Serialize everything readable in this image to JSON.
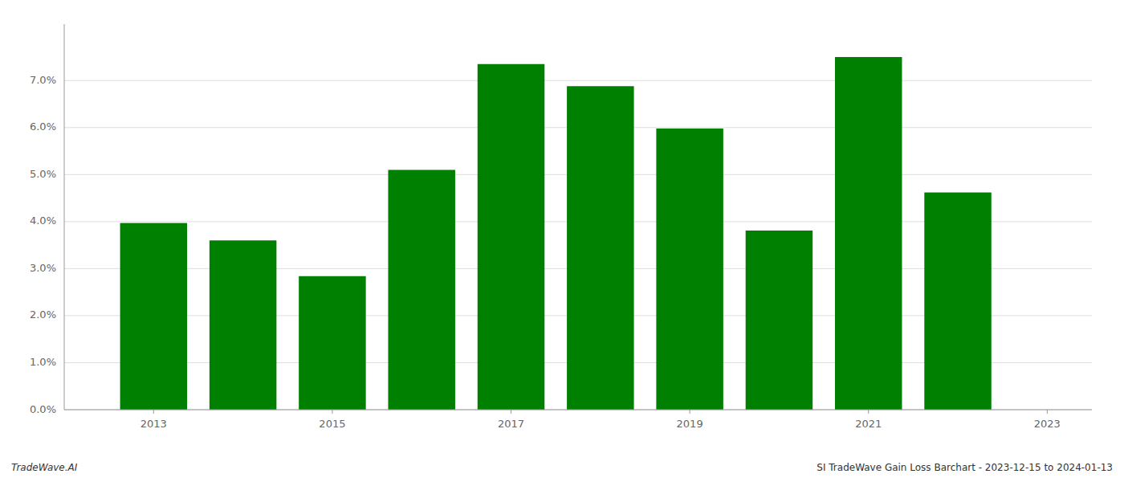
{
  "chart_data": {
    "type": "bar",
    "x": [
      2013,
      2014,
      2015,
      2016,
      2017,
      2018,
      2019,
      2020,
      2021,
      2022
    ],
    "values": [
      0.0397,
      0.036,
      0.0284,
      0.051,
      0.0735,
      0.0688,
      0.0598,
      0.0381,
      0.075,
      0.0462
    ],
    "color": "#008000",
    "xlim": [
      2012.0,
      2023.5
    ],
    "ylim": [
      0,
      0.082
    ],
    "xticks": [
      2013,
      2015,
      2017,
      2019,
      2021,
      2023
    ],
    "yticks": [
      {
        "value": 0.0,
        "label": "0.0%"
      },
      {
        "value": 0.01,
        "label": "1.0%"
      },
      {
        "value": 0.02,
        "label": "2.0%"
      },
      {
        "value": 0.03,
        "label": "3.0%"
      },
      {
        "value": 0.04,
        "label": "4.0%"
      },
      {
        "value": 0.05,
        "label": "5.0%"
      },
      {
        "value": 0.06,
        "label": "6.0%"
      },
      {
        "value": 0.07,
        "label": "7.0%"
      }
    ],
    "grid": true,
    "annotations": [
      "TradeWave.AI",
      "SI TradeWave Gain Loss Barchart - 2023-12-15 to 2024-01-13"
    ]
  }
}
